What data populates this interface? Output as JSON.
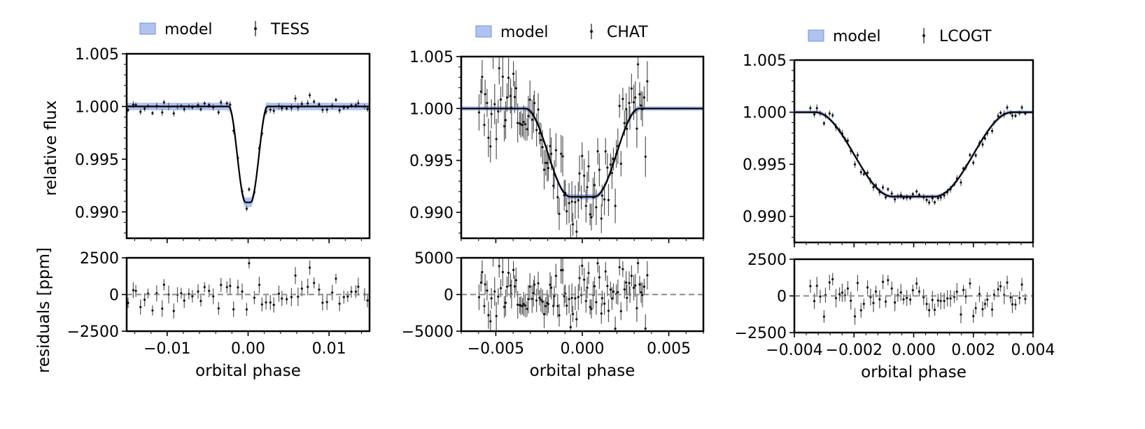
{
  "figure": {
    "ylabel_flux": "relative flux",
    "ylabel_resid": "residuals [ppm]",
    "xlabel": "orbital phase"
  },
  "chart_data": [
    {
      "type": "line",
      "instrument": "TESS",
      "legend": [
        "model",
        "TESS"
      ],
      "xlabel": "orbital phase",
      "xlim": [
        -0.015,
        0.015
      ],
      "xticks": [
        -0.01,
        0.0,
        0.01
      ],
      "xtick_labels": [
        "−0.01",
        "0.00",
        "0.01"
      ],
      "flux": {
        "ylabel": "relative flux",
        "ylim": [
          0.9875,
          1.005
        ],
        "yticks": [
          1.005,
          1.0,
          0.995,
          0.99
        ],
        "ytick_labels": [
          "1.005",
          "1.000",
          "0.995",
          "0.990"
        ],
        "model": {
          "depth": 0.0091,
          "t_total": 0.0024,
          "t_flat": 0.0003,
          "band_width": 0.0007,
          "color": "#6f8fe4"
        },
        "scatter": 0.00035,
        "n_points": 60,
        "seed": 11
      },
      "residuals": {
        "ylabel": "residuals [ppm]",
        "ylim": [
          -2500,
          2500
        ],
        "yticks": [
          2500,
          0,
          -2500
        ],
        "ytick_labels": [
          "2500",
          "0",
          "−2500"
        ],
        "scatter": 600
      }
    },
    {
      "type": "line",
      "instrument": "CHAT",
      "legend": [
        "model",
        "CHAT"
      ],
      "xlabel": "orbital phase",
      "xlim": [
        -0.007,
        0.007
      ],
      "xticks": [
        -0.005,
        0.0,
        0.005
      ],
      "xtick_labels": [
        "−0.005",
        "0.000",
        "0.005"
      ],
      "data_range": [
        -0.006,
        0.0038
      ],
      "flux": {
        "ylim": [
          0.9875,
          1.005
        ],
        "yticks": [
          1.005,
          1.0,
          0.995,
          0.99
        ],
        "ytick_labels": [
          "1.005",
          "1.000",
          "0.995",
          "0.990"
        ],
        "model": {
          "depth": 0.0085,
          "t_total": 0.0033,
          "t_flat": 0.0007,
          "band_width": 0.0004,
          "color": "#6f8fe4"
        },
        "scatter": 0.0019,
        "n_points": 110,
        "seed": 29
      },
      "residuals": {
        "ylim": [
          -5000,
          5000
        ],
        "yticks": [
          5000,
          0,
          -5000
        ],
        "ytick_labels": [
          "5000",
          "0",
          "−5000"
        ],
        "scatter": 1900
      }
    },
    {
      "type": "line",
      "instrument": "LCOGT",
      "legend": [
        "model",
        "LCOGT"
      ],
      "xlabel": "orbital phase",
      "xlim": [
        -0.004,
        0.004
      ],
      "xticks": [
        -0.004,
        -0.002,
        0.0,
        0.002,
        0.004
      ],
      "xtick_labels": [
        "−0.004",
        "−0.002",
        "0.000",
        "0.002",
        "0.004"
      ],
      "data_range": [
        -0.0035,
        0.0038
      ],
      "flux": {
        "ylim": [
          0.9875,
          1.005
        ],
        "yticks": [
          1.005,
          1.0,
          0.995,
          0.99
        ],
        "ytick_labels": [
          "1.005",
          "1.000",
          "0.995",
          "0.990"
        ],
        "model": {
          "depth": 0.0081,
          "t_total": 0.0033,
          "t_flat": 0.0007,
          "band_width": 0.0003,
          "color": "#6f8fe4"
        },
        "scatter": 0.00035,
        "n_points": 70,
        "seed": 47
      },
      "residuals": {
        "ylim": [
          -2500,
          2500
        ],
        "yticks": [
          2500,
          0,
          -2500
        ],
        "ytick_labels": [
          "2500",
          "0",
          "−2500"
        ],
        "scatter": 600
      }
    }
  ]
}
